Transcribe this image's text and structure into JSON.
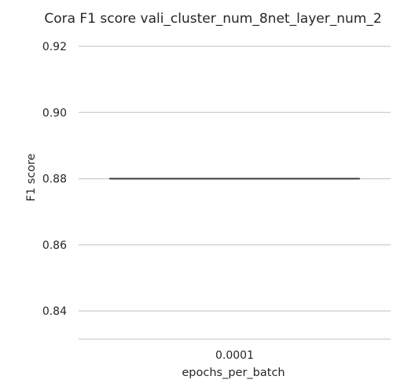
{
  "chart_data": {
    "type": "box",
    "title": "Cora F1 score vali_cluster_num_8net_layer_num_2",
    "xlabel": "epochs_per_batch",
    "ylabel": "F1 score",
    "categories": [
      "0.0001"
    ],
    "series": [
      {
        "category": "0.0001",
        "min": 0.88,
        "q1": 0.88,
        "median": 0.88,
        "q3": 0.88,
        "max": 0.88
      }
    ],
    "ylim": [
      0.8315,
      0.9245
    ],
    "yticks": [
      0.84,
      0.86,
      0.88,
      0.9,
      0.92
    ],
    "ytick_labels": [
      "0.84",
      "0.86",
      "0.88",
      "0.90",
      "0.92"
    ],
    "grid": "horizontal",
    "colors": {
      "grid": "#cccccc",
      "box_line": "#404040",
      "text": "#262626"
    }
  }
}
